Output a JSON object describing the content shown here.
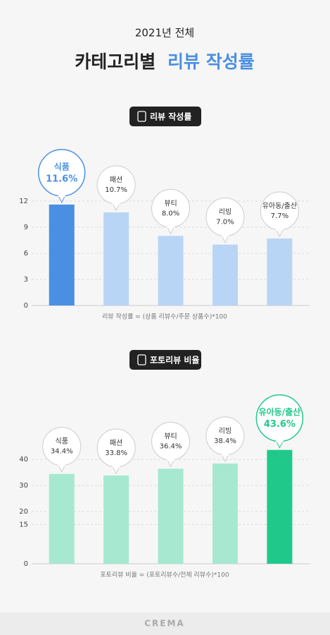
{
  "header": {
    "subtitle": "2021년 전체",
    "title_main": "카테고리별",
    "title_accent": "리뷰 작성률"
  },
  "chart_data": [
    {
      "type": "bar",
      "title": "리뷰 작성률",
      "categories": [
        "식품",
        "패션",
        "뷰티",
        "리빙",
        "유아동/출산"
      ],
      "values": [
        11.6,
        10.7,
        8.0,
        7.0,
        7.7
      ],
      "value_labels": [
        "11.6%",
        "10.7%",
        "8.0%",
        "7.0%",
        "7.7%"
      ],
      "colors": [
        "#4a90e2",
        "#b9d5f5",
        "#b9d5f5",
        "#b9d5f5",
        "#b9d5f5"
      ],
      "accent_color": "#4a90e2",
      "ylim": [
        0,
        12
      ],
      "yticks": [
        0,
        3,
        6,
        9,
        12
      ],
      "grid": true,
      "annotation": "리뷰 작성률 = (상품 리뷰수/주문 상품수)*100"
    },
    {
      "type": "bar",
      "title": "포토리뷰 비율",
      "categories": [
        "식품",
        "패션",
        "뷰티",
        "리빙",
        "유아동/출산"
      ],
      "values": [
        34.4,
        33.8,
        36.4,
        38.4,
        43.6
      ],
      "value_labels": [
        "34.4%",
        "33.8%",
        "36.4%",
        "38.4%",
        "43.6%"
      ],
      "colors": [
        "#a6e9d0",
        "#a6e9d0",
        "#a6e9d0",
        "#a6e9d0",
        "#20c98a"
      ],
      "accent_color": "#20c98a",
      "ylim": [
        0,
        40
      ],
      "yticks": [
        0,
        15,
        20,
        30,
        40
      ],
      "grid": true,
      "annotation": "포토리뷰 비율 = (포토리뷰수/전체 리뷰수)*100"
    }
  ],
  "footer": {
    "logo": "CREMA"
  }
}
